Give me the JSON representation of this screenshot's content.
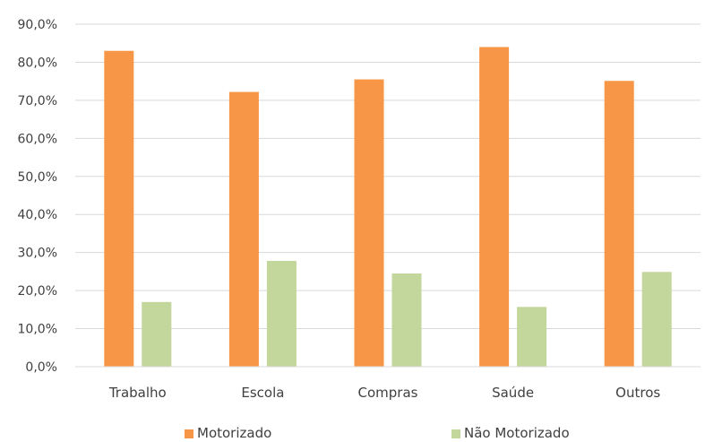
{
  "chart_data": {
    "type": "bar",
    "title": "",
    "xlabel": "",
    "ylabel": "",
    "categories": [
      "Trabalho",
      "Escola",
      "Compras",
      "Saúde",
      "Outros"
    ],
    "series": [
      {
        "name": "Motorizado",
        "color": "#F79646",
        "values": [
          83.0,
          72.2,
          75.5,
          84.0,
          75.1
        ]
      },
      {
        "name": "Não Motorizado",
        "color": "#C3D69B",
        "values": [
          17.0,
          27.8,
          24.5,
          15.7,
          24.9
        ]
      }
    ],
    "ylim": [
      0,
      90
    ],
    "yticks": [
      0,
      10,
      20,
      30,
      40,
      50,
      60,
      70,
      80,
      90
    ],
    "ytick_labels": [
      "0,0%",
      "10,0%",
      "20,0%",
      "30,0%",
      "40,0%",
      "50,0%",
      "60,0%",
      "70,0%",
      "80,0%",
      "90,0%"
    ],
    "grid": true,
    "legend": "bottom"
  }
}
